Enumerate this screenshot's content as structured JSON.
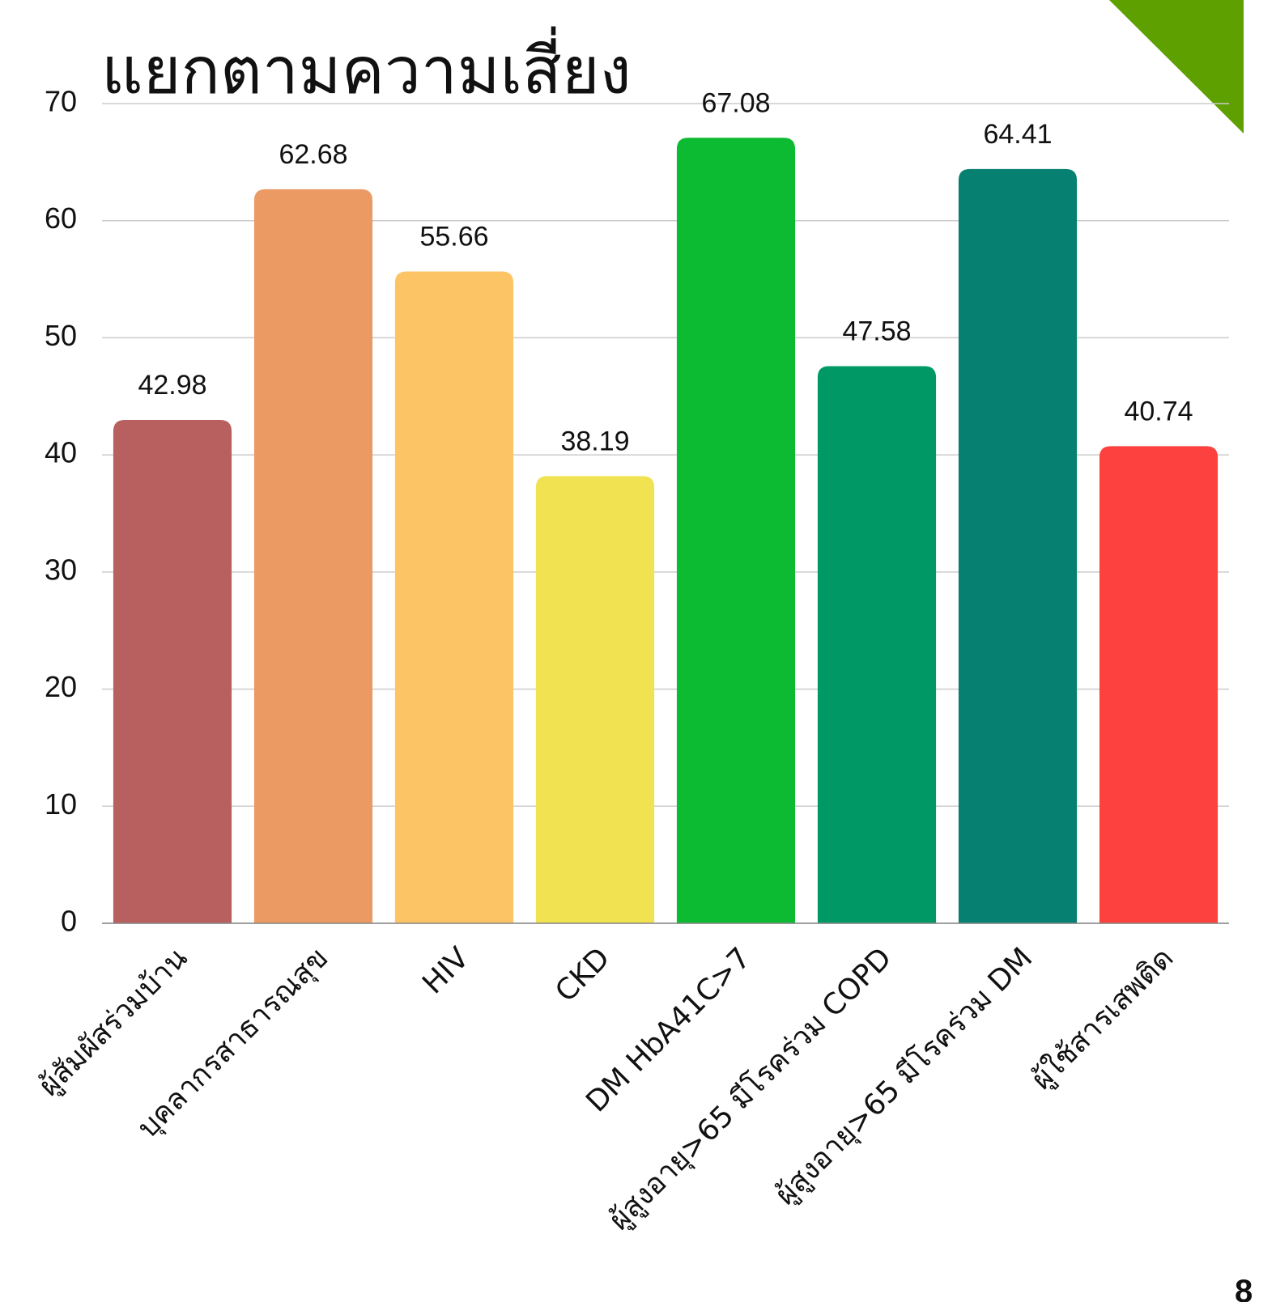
{
  "chart_data": {
    "type": "bar",
    "title": "แยกตามความเสี่ยง",
    "categories": [
      "ผู้สัมผัสร่วมบ้าน",
      "บุคลากรสาธารณสุข",
      "HIV",
      "CKD",
      "DM HbA41C>7",
      "ผู้สูงอายุ>65 มีโรคร่วม COPD",
      "ผู้สูงอายุ>65 มีโรคร่วม DM",
      "ผู้ใช้สารเสพติด"
    ],
    "values": [
      42.98,
      62.68,
      55.66,
      38.19,
      67.08,
      47.58,
      64.41,
      40.74
    ],
    "colors": [
      "#b86060",
      "#ec9a63",
      "#fdc466",
      "#f0e250",
      "#0dbb32",
      "#009966",
      "#068070",
      "#fc413e"
    ],
    "ylim": [
      0,
      70
    ],
    "yticks": [
      0,
      10,
      20,
      30,
      40,
      50,
      60,
      70
    ],
    "grid": true
  },
  "page_number": "8"
}
